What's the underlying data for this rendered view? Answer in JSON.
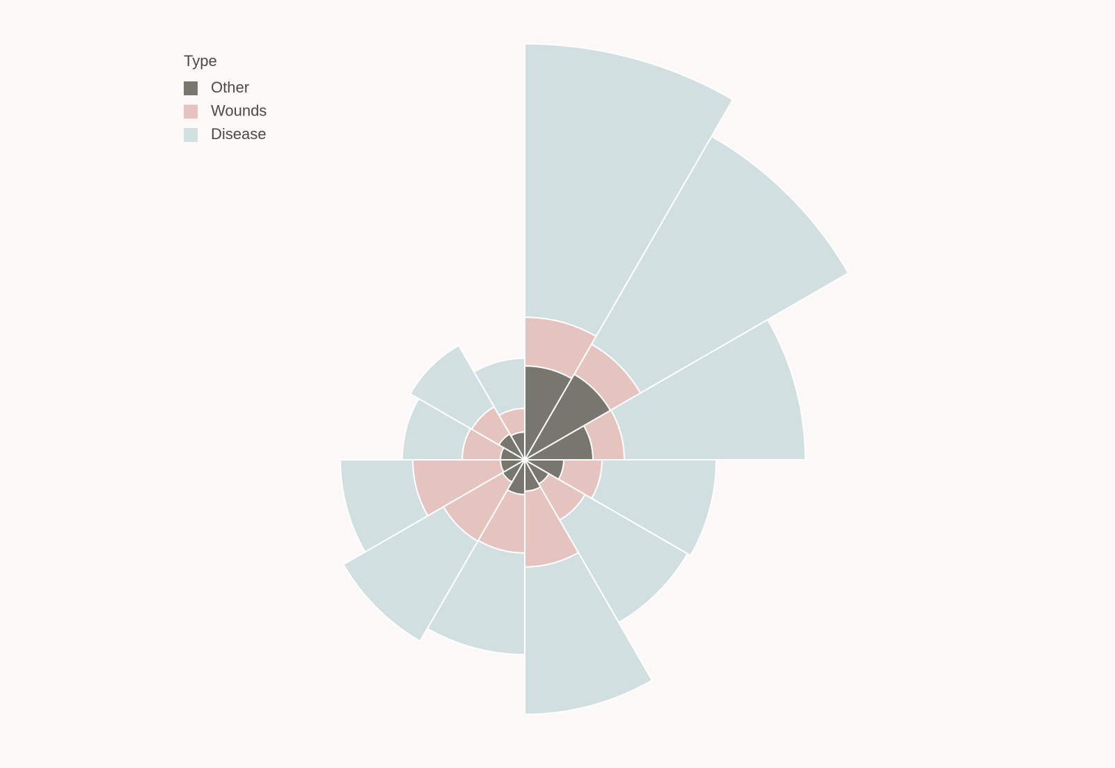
{
  "chart_data": {
    "type": "barpolar",
    "legend_title": "Type",
    "rlim": [
      0,
      600
    ],
    "series": [
      {
        "name": "Other",
        "color": "#78776f",
        "values": [
          135,
          142,
          98,
          56,
          40,
          45,
          50,
          37,
          35,
          35,
          43,
          40
        ]
      },
      {
        "name": "Wounds",
        "color": "#e5c4c0",
        "values": [
          70,
          50,
          45,
          55,
          60,
          109,
          84,
          98,
          126,
          55,
          45,
          34
        ]
      },
      {
        "name": "Disease",
        "color": "#d1dfe1",
        "values": [
          393,
          345,
          260,
          164,
          170,
          212,
          146,
          166,
          104,
          86,
          102,
          72
        ]
      }
    ]
  }
}
